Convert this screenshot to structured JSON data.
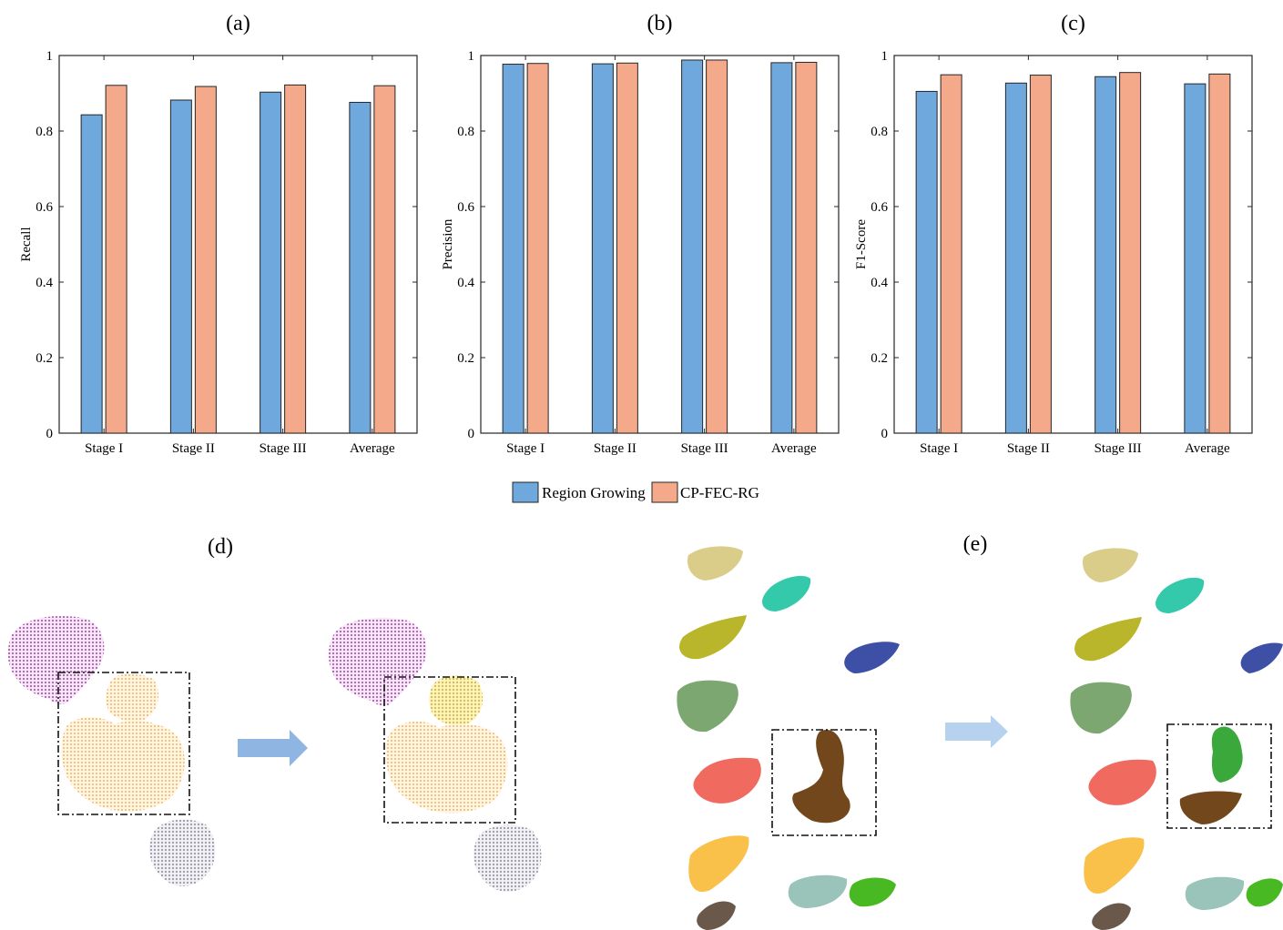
{
  "colors": {
    "region_growing": "#6fa8dc",
    "cp_fec_rg": "#f4a98a",
    "axis": "#262626",
    "arrow": "#8fb6e3"
  },
  "chart_data": [
    {
      "panel": "(a)",
      "type": "bar",
      "categories": [
        "Stage I",
        "Stage II",
        "Stage III",
        "Average"
      ],
      "ylabel": "Recall",
      "ylim": [
        0,
        1
      ],
      "yticks": [
        "0",
        "0.2",
        "0.4",
        "0.6",
        "0.8",
        "1"
      ],
      "series": [
        {
          "name": "Region Growing",
          "values": [
            0.843,
            0.882,
            0.903,
            0.876
          ]
        },
        {
          "name": "CP-FEC-RG",
          "values": [
            0.921,
            0.918,
            0.922,
            0.92
          ]
        }
      ]
    },
    {
      "panel": "(b)",
      "type": "bar",
      "categories": [
        "Stage I",
        "Stage II",
        "Stage III",
        "Average"
      ],
      "ylabel": "Precision",
      "ylim": [
        0,
        1
      ],
      "yticks": [
        "0",
        "0.2",
        "0.4",
        "0.6",
        "0.8",
        "1"
      ],
      "series": [
        {
          "name": "Region Growing",
          "values": [
            0.977,
            0.978,
            0.988,
            0.981
          ]
        },
        {
          "name": "CP-FEC-RG",
          "values": [
            0.979,
            0.98,
            0.988,
            0.982
          ]
        }
      ]
    },
    {
      "panel": "(c)",
      "type": "bar",
      "categories": [
        "Stage I",
        "Stage II",
        "Stage III",
        "Average"
      ],
      "ylabel": "F1-Score",
      "ylim": [
        0,
        1
      ],
      "yticks": [
        "0",
        "0.2",
        "0.4",
        "0.6",
        "0.8",
        "1"
      ],
      "series": [
        {
          "name": "Region Growing",
          "values": [
            0.905,
            0.927,
            0.944,
            0.925
          ]
        },
        {
          "name": "CP-FEC-RG",
          "values": [
            0.949,
            0.948,
            0.955,
            0.951
          ]
        }
      ]
    }
  ],
  "legend": {
    "placement": "bottom-center",
    "items": [
      "Region Growing",
      "CP-FEC-RG"
    ]
  },
  "images": [
    {
      "panel": "(d)"
    },
    {
      "panel": "(e)"
    }
  ]
}
